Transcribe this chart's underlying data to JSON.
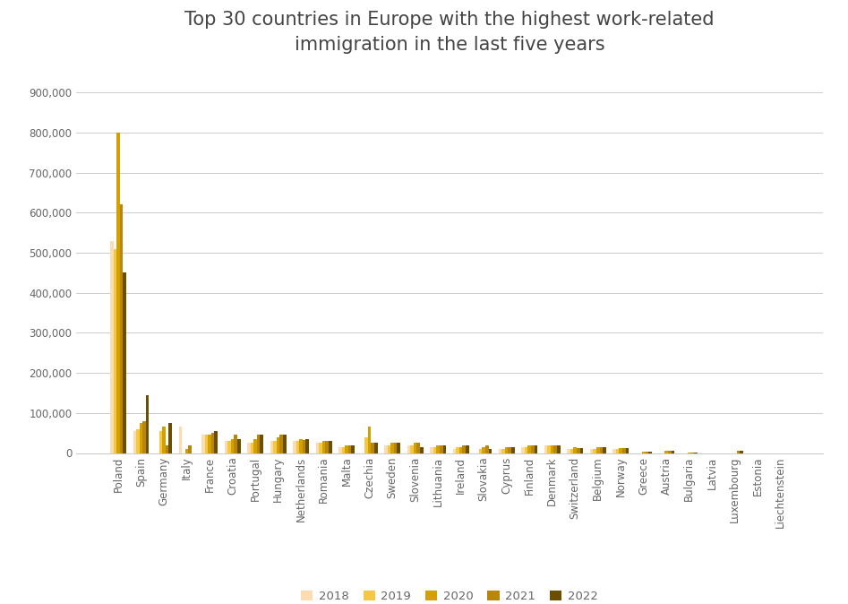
{
  "title": "Top 30 countries in Europe with the highest work-related\nimmigration in the last five years",
  "categories": [
    "Poland",
    "Spain",
    "Germany",
    "Italy",
    "France",
    "Croatia",
    "Portugal",
    "Hungary",
    "Netherlands",
    "Romania",
    "Malta",
    "Czechia",
    "Sweden",
    "Slovenia",
    "Lithuania",
    "Ireland",
    "Slovakia",
    "Cyprus",
    "Finland",
    "Denmark",
    "Switzerland",
    "Belgium",
    "Norway",
    "Greece",
    "Austria",
    "Bulgaria",
    "Latvia",
    "Luxembourg",
    "Estonia",
    "Liechtenstein"
  ],
  "years": [
    "2018",
    "2019",
    "2020",
    "2021",
    "2022"
  ],
  "colors": [
    "#FCDCB0",
    "#F5C842",
    "#D4A000",
    "#B8860B",
    "#6B4E00"
  ],
  "values": {
    "2018": [
      530000,
      55000,
      0,
      65000,
      45000,
      30000,
      25000,
      30000,
      30000,
      25000,
      15000,
      0,
      20000,
      20000,
      15000,
      10000,
      0,
      10000,
      15000,
      20000,
      10000,
      10000,
      10000,
      0,
      0,
      0,
      0,
      0,
      0,
      0
    ],
    "2019": [
      510000,
      60000,
      55000,
      0,
      45000,
      30000,
      25000,
      30000,
      30000,
      25000,
      15000,
      40000,
      20000,
      20000,
      15000,
      15000,
      10000,
      10000,
      15000,
      20000,
      10000,
      10000,
      10000,
      0,
      0,
      0,
      0,
      0,
      0,
      0
    ],
    "2020": [
      800000,
      75000,
      65000,
      10000,
      45000,
      35000,
      35000,
      40000,
      35000,
      30000,
      20000,
      65000,
      25000,
      25000,
      20000,
      15000,
      15000,
      15000,
      20000,
      20000,
      15000,
      15000,
      12000,
      3000,
      5000,
      2000,
      0,
      0,
      0,
      0
    ],
    "2021": [
      620000,
      80000,
      20000,
      20000,
      50000,
      45000,
      45000,
      45000,
      32000,
      30000,
      20000,
      25000,
      25000,
      25000,
      20000,
      20000,
      20000,
      15000,
      18000,
      18000,
      12000,
      15000,
      12000,
      3000,
      5000,
      2000,
      0,
      5000,
      0,
      0
    ],
    "2022": [
      450000,
      145000,
      75000,
      0,
      55000,
      35000,
      45000,
      45000,
      35000,
      30000,
      20000,
      25000,
      25000,
      15000,
      20000,
      20000,
      10000,
      15000,
      18000,
      18000,
      12000,
      15000,
      12000,
      3000,
      5000,
      2000,
      0,
      5000,
      0,
      0
    ]
  },
  "ylim": [
    0,
    950000
  ],
  "yticks": [
    0,
    100000,
    200000,
    300000,
    400000,
    500000,
    600000,
    700000,
    800000,
    900000
  ],
  "background_color": "#ffffff",
  "grid_color": "#cccccc",
  "title_fontsize": 15,
  "tick_fontsize": 8.5,
  "legend_fontsize": 9.5
}
